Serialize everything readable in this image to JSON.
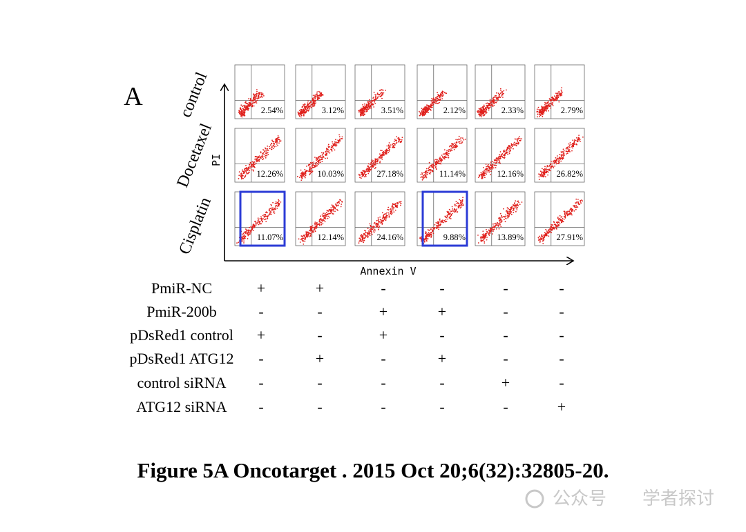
{
  "panel_label": "A",
  "y_axis_label": "PI",
  "x_axis_label": "Annexin V",
  "rows": [
    {
      "label": "control",
      "cells": [
        {
          "value": "2.54%",
          "highlighted": false
        },
        {
          "value": "3.12%",
          "highlighted": false
        },
        {
          "value": "3.51%",
          "highlighted": false
        },
        {
          "value": "2.12%",
          "highlighted": false
        },
        {
          "value": "2.33%",
          "highlighted": false
        },
        {
          "value": "2.79%",
          "highlighted": false
        }
      ]
    },
    {
      "label": "Docetaxel",
      "cells": [
        {
          "value": "12.26%",
          "highlighted": false
        },
        {
          "value": "10.03%",
          "highlighted": false
        },
        {
          "value": "27.18%",
          "highlighted": false
        },
        {
          "value": "11.14%",
          "highlighted": false
        },
        {
          "value": "12.16%",
          "highlighted": false
        },
        {
          "value": "26.82%",
          "highlighted": false
        }
      ]
    },
    {
      "label": "Cisplatin",
      "cells": [
        {
          "value": "11.07%",
          "highlighted": true
        },
        {
          "value": "12.14%",
          "highlighted": false
        },
        {
          "value": "24.16%",
          "highlighted": false
        },
        {
          "value": "9.88%",
          "highlighted": true
        },
        {
          "value": "13.89%",
          "highlighted": false
        },
        {
          "value": "27.91%",
          "highlighted": false
        }
      ]
    }
  ],
  "conditions": [
    {
      "label": "PmiR-NC",
      "marks": [
        "+",
        "+",
        "-",
        "-",
        "-",
        "-"
      ]
    },
    {
      "label": "PmiR-200b",
      "marks": [
        "-",
        "-",
        "+",
        "+",
        "-",
        "-"
      ]
    },
    {
      "label": "pDsRed1 control",
      "marks": [
        "+",
        "-",
        "+",
        "-",
        "-",
        "-"
      ]
    },
    {
      "label": "pDsRed1 ATG12",
      "marks": [
        "-",
        "+",
        "-",
        "+",
        "-",
        "-"
      ]
    },
    {
      "label": "control siRNA",
      "marks": [
        "-",
        "-",
        "-",
        "-",
        "+",
        "-"
      ]
    },
    {
      "label": "ATG12 siRNA",
      "marks": [
        "-",
        "-",
        "-",
        "-",
        "-",
        "+"
      ]
    }
  ],
  "caption": "Figure 5A Oncotarget . 2015 Oct 20;6(32):32805-20.",
  "watermark": [
    "公众号",
    "学者探讨"
  ]
}
